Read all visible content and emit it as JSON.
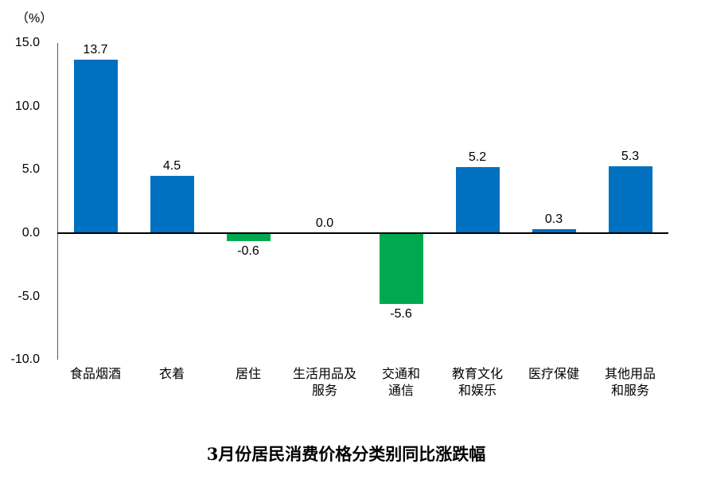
{
  "chart_data": {
    "type": "bar",
    "title": "3月份居民消费价格分类别同比涨跌幅",
    "unit_label": "（%）",
    "categories": [
      "食品烟酒",
      "衣着",
      "居住",
      "生活用品及服务",
      "交通和通信",
      "教育文化和娱乐",
      "医疗保健",
      "其他用品和服务"
    ],
    "category_lines": [
      [
        "食品烟酒"
      ],
      [
        "衣着"
      ],
      [
        "居住"
      ],
      [
        "生活用品及",
        "服务"
      ],
      [
        "交通和",
        "通信"
      ],
      [
        "教育文化",
        "和娱乐"
      ],
      [
        "医疗保健"
      ],
      [
        "其他用品",
        "和服务"
      ]
    ],
    "values": [
      13.7,
      4.5,
      -0.6,
      0.0,
      -5.6,
      5.2,
      0.3,
      5.3
    ],
    "value_labels": [
      "13.7",
      "4.5",
      "-0.6",
      "0.0",
      "-5.6",
      "5.2",
      "0.3",
      "5.3"
    ],
    "ylabel": "%",
    "xlabel": "",
    "ylim": [
      -10,
      15
    ],
    "yticks": [
      15.0,
      10.0,
      5.0,
      0.0,
      -5.0,
      -10.0
    ],
    "ytick_labels": [
      "15.0",
      "10.0",
      "5.0",
      "0.0",
      "-5.0",
      "-10.0"
    ],
    "grid": false,
    "legend_position": "none",
    "positive_color": "#0070C0",
    "negative_color": "#00A950",
    "axis_color": "#595959",
    "zero_line_color": "#000000"
  }
}
